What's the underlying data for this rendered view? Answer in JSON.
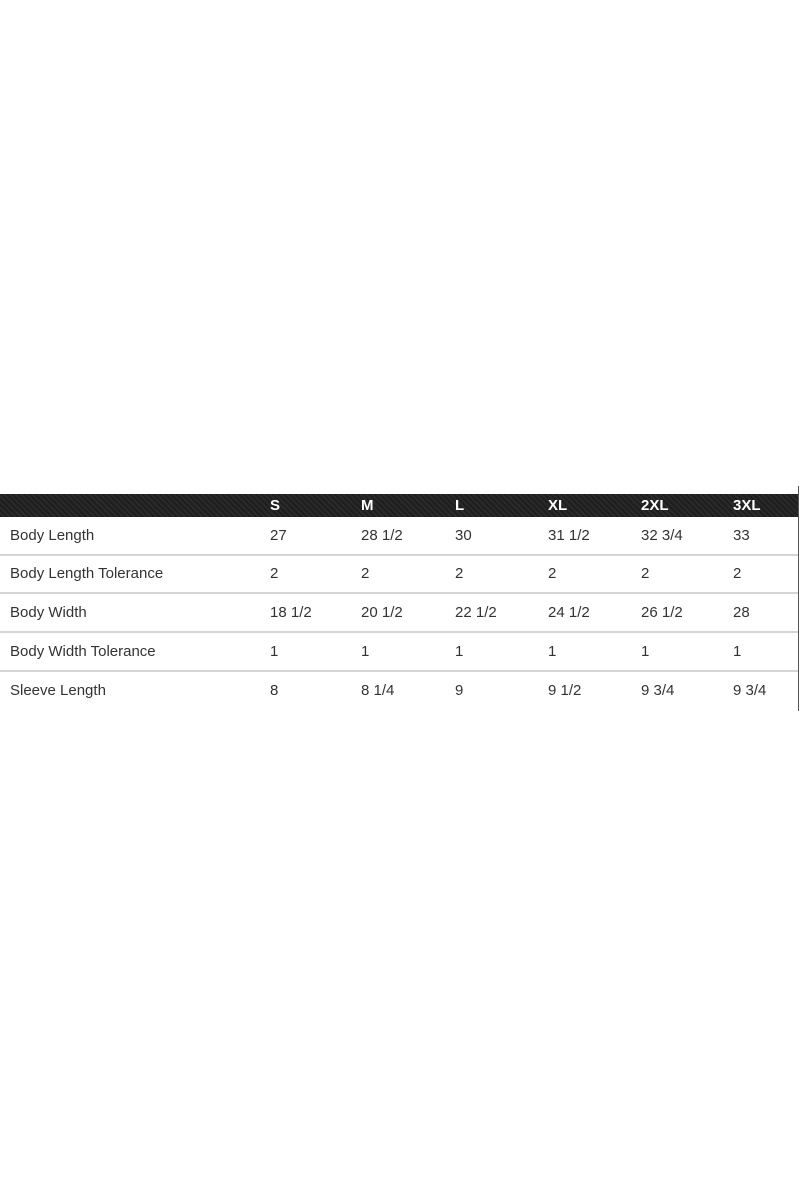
{
  "table": {
    "columns": [
      "",
      "S",
      "M",
      "L",
      "XL",
      "2XL",
      "3XL"
    ],
    "rows": [
      [
        "Body Length",
        "27",
        "28 1/2",
        "30",
        "31 1/2",
        "32 3/4",
        "33"
      ],
      [
        "Body Length Tolerance",
        "2",
        "2",
        "2",
        "2",
        "2",
        "2"
      ],
      [
        "Body Width",
        "18 1/2",
        "20 1/2",
        "22 1/2",
        "24 1/2",
        "26 1/2",
        "28"
      ],
      [
        "Body Width Tolerance",
        "1",
        "1",
        "1",
        "1",
        "1",
        "1"
      ],
      [
        "Sleeve Length",
        "8",
        "8 1/4",
        "9",
        "9 1/2",
        "9 3/4",
        "9 3/4"
      ]
    ]
  },
  "colors": {
    "header_bg": "#222222",
    "header_text": "#ffffff",
    "row_divider": "#d4d4d4",
    "cell_text": "#333333"
  }
}
